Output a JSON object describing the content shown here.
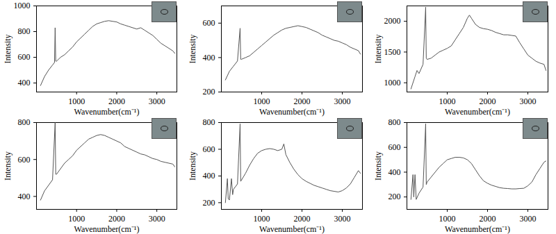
{
  "chart_data": [
    {
      "type": "line",
      "x_label": "Wavenumber(cm⁻¹)",
      "y_label": "Intensity",
      "color": "#555555",
      "xlim": [
        0,
        3500
      ],
      "xticks": [
        1000,
        2000,
        3000
      ],
      "ylim": [
        330,
        1000
      ],
      "yticks": [
        400,
        600,
        800,
        1000
      ],
      "x": [
        100,
        200,
        300,
        400,
        450,
        465,
        480,
        500,
        600,
        700,
        800,
        900,
        1000,
        1100,
        1200,
        1300,
        1400,
        1500,
        1600,
        1700,
        1800,
        1900,
        2000,
        2100,
        2200,
        2300,
        2400,
        2500,
        2600,
        2700,
        2800,
        2900,
        3000,
        3100,
        3200,
        3300,
        3400,
        3450
      ],
      "values": [
        380,
        450,
        500,
        540,
        560,
        830,
        570,
        570,
        600,
        620,
        650,
        680,
        720,
        750,
        780,
        810,
        840,
        860,
        870,
        880,
        885,
        880,
        875,
        860,
        850,
        840,
        830,
        820,
        830,
        810,
        790,
        770,
        740,
        710,
        690,
        670,
        650,
        630
      ]
    },
    {
      "type": "line",
      "x_label": "Wavenumber(cm⁻¹)",
      "y_label": "Intensity",
      "color": "#555555",
      "xlim": [
        0,
        3500
      ],
      "xticks": [
        1000,
        2000,
        3000
      ],
      "ylim": [
        200,
        700
      ],
      "yticks": [
        200,
        400,
        600
      ],
      "x": [
        100,
        200,
        300,
        400,
        465,
        480,
        500,
        600,
        700,
        800,
        900,
        1000,
        1100,
        1200,
        1300,
        1400,
        1500,
        1600,
        1700,
        1800,
        1900,
        2000,
        2100,
        2200,
        2300,
        2400,
        2500,
        2600,
        2700,
        2800,
        2900,
        3000,
        3100,
        3200,
        3300,
        3400,
        3450
      ],
      "values": [
        270,
        320,
        350,
        380,
        570,
        390,
        390,
        400,
        410,
        430,
        450,
        470,
        490,
        510,
        530,
        545,
        560,
        570,
        575,
        580,
        585,
        580,
        575,
        565,
        555,
        545,
        530,
        520,
        510,
        500,
        495,
        485,
        475,
        460,
        450,
        440,
        420
      ]
    },
    {
      "type": "line",
      "x_label": "Wavenumber(cm⁻¹)",
      "y_label": "Intensity",
      "color": "#555555",
      "xlim": [
        0,
        3500
      ],
      "xticks": [
        1000,
        2000,
        3000
      ],
      "ylim": [
        850,
        2250
      ],
      "yticks": [
        1000,
        1500,
        2000
      ],
      "x": [
        100,
        200,
        250,
        300,
        400,
        465,
        480,
        500,
        600,
        700,
        800,
        900,
        1000,
        1100,
        1200,
        1300,
        1400,
        1500,
        1550,
        1600,
        1700,
        1800,
        1900,
        2000,
        2100,
        2200,
        2300,
        2400,
        2500,
        2600,
        2700,
        2800,
        2900,
        3000,
        3100,
        3200,
        3300,
        3400,
        3450
      ],
      "values": [
        900,
        1100,
        1200,
        1150,
        1300,
        2230,
        1400,
        1380,
        1400,
        1450,
        1500,
        1530,
        1560,
        1600,
        1700,
        1800,
        1900,
        2050,
        2100,
        2050,
        1950,
        1900,
        1880,
        1870,
        1850,
        1820,
        1800,
        1780,
        1780,
        1770,
        1760,
        1650,
        1550,
        1450,
        1400,
        1350,
        1320,
        1300,
        1200
      ]
    },
    {
      "type": "line",
      "x_label": "Wavenumber(cm⁻¹)",
      "y_label": "Intensity",
      "color": "#555555",
      "xlim": [
        0,
        3500
      ],
      "xticks": [
        1000,
        2000,
        3000
      ],
      "ylim": [
        330,
        800
      ],
      "yticks": [
        400,
        600,
        800
      ],
      "x": [
        100,
        200,
        300,
        400,
        465,
        480,
        500,
        600,
        700,
        800,
        900,
        1000,
        1100,
        1200,
        1300,
        1400,
        1500,
        1600,
        1700,
        1800,
        1900,
        2000,
        2100,
        2200,
        2300,
        2400,
        2500,
        2600,
        2700,
        2800,
        2900,
        3000,
        3100,
        3200,
        3300,
        3400,
        3450
      ],
      "values": [
        380,
        430,
        460,
        490,
        800,
        520,
        520,
        550,
        580,
        600,
        620,
        650,
        670,
        690,
        710,
        720,
        730,
        735,
        730,
        720,
        710,
        700,
        690,
        670,
        660,
        650,
        640,
        630,
        625,
        615,
        605,
        600,
        590,
        585,
        580,
        575,
        560
      ]
    },
    {
      "type": "line",
      "x_label": "Wavenumber(cm⁻¹)",
      "y_label": "Intensity",
      "color": "#555555",
      "xlim": [
        0,
        3500
      ],
      "xticks": [
        1000,
        2000,
        3000
      ],
      "ylim": [
        150,
        800
      ],
      "yticks": [
        200,
        400,
        600,
        800
      ],
      "x": [
        100,
        150,
        170,
        200,
        250,
        280,
        300,
        400,
        465,
        480,
        500,
        600,
        700,
        800,
        900,
        1000,
        1100,
        1200,
        1300,
        1400,
        1500,
        1550,
        1600,
        1700,
        1800,
        1900,
        2000,
        2100,
        2200,
        2300,
        2400,
        2500,
        2600,
        2700,
        2800,
        2900,
        3000,
        3100,
        3200,
        3300,
        3400,
        3450
      ],
      "values": [
        200,
        380,
        230,
        220,
        380,
        260,
        300,
        340,
        790,
        360,
        370,
        420,
        480,
        530,
        570,
        590,
        600,
        605,
        600,
        590,
        600,
        640,
        560,
        500,
        450,
        410,
        380,
        360,
        345,
        330,
        320,
        310,
        300,
        290,
        285,
        280,
        290,
        310,
        340,
        390,
        440,
        420
      ]
    },
    {
      "type": "line",
      "x_label": "Wavenumber(cm⁻¹)",
      "y_label": "Intensity",
      "color": "#555555",
      "xlim": [
        0,
        3500
      ],
      "xticks": [
        1000,
        2000,
        3000
      ],
      "ylim": [
        100,
        800
      ],
      "yticks": [
        200,
        400,
        600,
        800
      ],
      "x": [
        100,
        150,
        170,
        200,
        230,
        300,
        400,
        465,
        480,
        500,
        600,
        700,
        800,
        900,
        1000,
        1100,
        1200,
        1300,
        1400,
        1500,
        1600,
        1700,
        1800,
        1900,
        2000,
        2100,
        2200,
        2300,
        2400,
        2500,
        2600,
        2700,
        2800,
        2900,
        3000,
        3100,
        3200,
        3300,
        3400,
        3450
      ],
      "values": [
        180,
        380,
        200,
        380,
        180,
        230,
        280,
        790,
        300,
        320,
        360,
        400,
        440,
        470,
        500,
        510,
        520,
        520,
        515,
        500,
        470,
        420,
        370,
        330,
        310,
        295,
        285,
        275,
        270,
        268,
        265,
        265,
        268,
        270,
        290,
        320,
        380,
        430,
        480,
        490
      ]
    }
  ]
}
